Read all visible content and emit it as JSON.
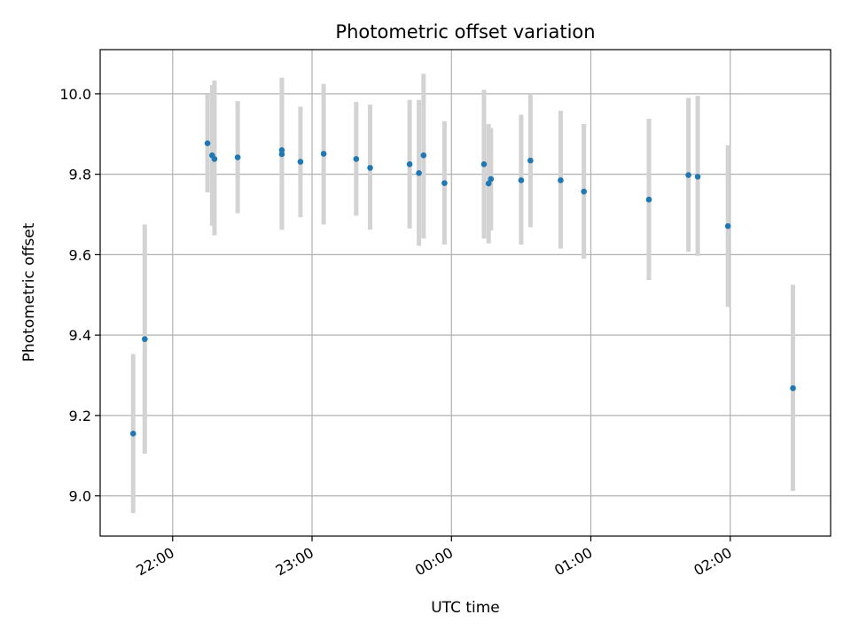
{
  "chart_data": {
    "type": "scatter",
    "title": "Photometric offset variation",
    "xlabel": "UTC time",
    "ylabel": "Photometric offset",
    "x_axis_type": "time",
    "x_ticks": [
      "22:00",
      "23:00",
      "00:00",
      "01:00",
      "02:00"
    ],
    "x_tick_values_hours": [
      22,
      23,
      24,
      25,
      26
    ],
    "xlim_hours": [
      21.48,
      26.72
    ],
    "y_ticks": [
      "9.0",
      "9.2",
      "9.4",
      "9.6",
      "9.8",
      "10.0"
    ],
    "y_tick_values": [
      9.0,
      9.2,
      9.4,
      9.6,
      9.8,
      10.0
    ],
    "ylim": [
      8.9,
      10.11
    ],
    "grid": true,
    "legend": "none",
    "marker_color": "#1f77b4",
    "errorbar_color": "#d3d3d3",
    "series": [
      {
        "x": [
          "21:43",
          "21:48",
          "22:15",
          "22:17",
          "22:18",
          "22:28",
          "22:47",
          "22:47",
          "22:55",
          "23:05",
          "23:19",
          "23:25",
          "23:42",
          "23:46",
          "23:48",
          "23:57",
          "00:14",
          "00:16",
          "00:17",
          "00:30",
          "00:34",
          "00:47",
          "00:57",
          "01:25",
          "01:42",
          "01:46",
          "01:59",
          "02:27"
        ],
        "y": [
          9.155,
          9.39,
          9.877,
          9.847,
          9.838,
          9.842,
          9.86,
          9.85,
          9.831,
          9.851,
          9.838,
          9.816,
          9.825,
          9.803,
          9.847,
          9.778,
          9.825,
          9.777,
          9.788,
          9.785,
          9.834,
          9.785,
          9.757,
          9.737,
          9.798,
          9.794,
          9.671,
          9.268
        ],
        "yerr_low": [
          8.957,
          9.105,
          9.755,
          9.672,
          9.648,
          9.703,
          9.662,
          9.662,
          9.693,
          9.675,
          9.697,
          9.662,
          9.665,
          9.622,
          9.64,
          9.625,
          9.64,
          9.628,
          9.66,
          9.625,
          9.668,
          9.615,
          9.59,
          9.537,
          9.607,
          9.597,
          9.47,
          9.012
        ],
        "yerr_high": [
          9.353,
          9.675,
          9.998,
          10.022,
          10.033,
          9.982,
          10.04,
          10.04,
          9.968,
          10.025,
          9.98,
          9.973,
          9.985,
          9.985,
          10.05,
          9.932,
          10.01,
          9.925,
          9.915,
          9.948,
          10.0,
          9.958,
          9.925,
          9.938,
          9.99,
          9.995,
          9.872,
          9.525
        ]
      }
    ]
  }
}
